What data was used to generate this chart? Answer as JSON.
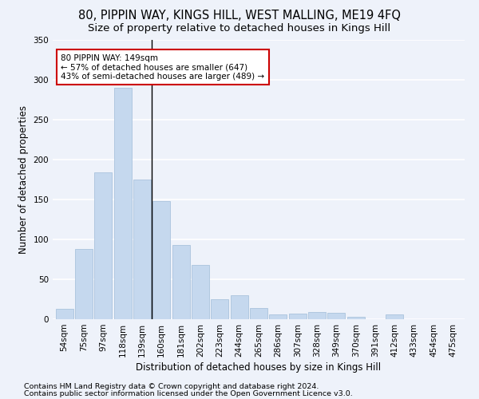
{
  "title1": "80, PIPPIN WAY, KINGS HILL, WEST MALLING, ME19 4FQ",
  "title2": "Size of property relative to detached houses in Kings Hill",
  "xlabel": "Distribution of detached houses by size in Kings Hill",
  "ylabel": "Number of detached properties",
  "categories": [
    "54sqm",
    "75sqm",
    "97sqm",
    "118sqm",
    "139sqm",
    "160sqm",
    "181sqm",
    "202sqm",
    "223sqm",
    "244sqm",
    "265sqm",
    "286sqm",
    "307sqm",
    "328sqm",
    "349sqm",
    "370sqm",
    "391sqm",
    "412sqm",
    "433sqm",
    "454sqm",
    "475sqm"
  ],
  "values": [
    13,
    88,
    184,
    290,
    175,
    148,
    93,
    68,
    25,
    30,
    14,
    6,
    7,
    9,
    8,
    3,
    0,
    6,
    0,
    0,
    0
  ],
  "bar_color": "#c5d8ee",
  "bar_edge_color": "#a0bcd8",
  "vertical_line_x": 4.5,
  "annotation_text": "80 PIPPIN WAY: 149sqm\n← 57% of detached houses are smaller (647)\n43% of semi-detached houses are larger (489) →",
  "annotation_box_facecolor": "#ffffff",
  "annotation_border_color": "#cc0000",
  "ylim": [
    0,
    350
  ],
  "yticks": [
    0,
    50,
    100,
    150,
    200,
    250,
    300,
    350
  ],
  "footer1": "Contains HM Land Registry data © Crown copyright and database right 2024.",
  "footer2": "Contains public sector information licensed under the Open Government Licence v3.0.",
  "bg_color": "#eef2fa",
  "grid_color": "#ffffff",
  "title_fontsize": 10.5,
  "subtitle_fontsize": 9.5,
  "axis_label_fontsize": 8.5,
  "tick_fontsize": 7.5,
  "annotation_fontsize": 7.5,
  "footer_fontsize": 6.8
}
